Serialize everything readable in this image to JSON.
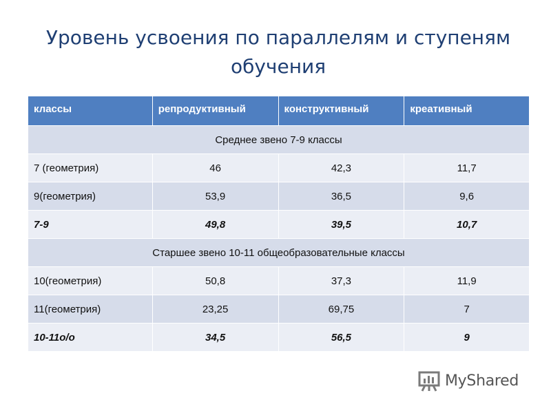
{
  "slide": {
    "title": "Уровень усвоения по параллелям и ступеням обучения"
  },
  "table": {
    "headers": [
      "классы",
      "репродуктивный",
      "конструктивный",
      "креативный"
    ],
    "sections": [
      {
        "label": "Среднее звено 7-9 классы",
        "rows": [
          {
            "cells": [
              "7 (геометрия)",
              "46",
              "42,3",
              "11,7"
            ],
            "bold": false
          },
          {
            "cells": [
              "9(геометрия)",
              "53,9",
              "36,5",
              "9,6"
            ],
            "bold": false
          },
          {
            "cells": [
              "7-9",
              "49,8",
              "39,5",
              "10,7"
            ],
            "bold": true
          }
        ]
      },
      {
        "label": "Старшее звено 10-11 общеобразовательные классы",
        "rows": [
          {
            "cells": [
              "10(геометрия)",
              "50,8",
              "37,3",
              "11,9"
            ],
            "bold": false
          },
          {
            "cells": [
              "11(геометрия)",
              "23,25",
              "69,75",
              "7"
            ],
            "bold": false
          },
          {
            "cells": [
              "10-11о/о",
              "34,5",
              "56,5",
              "9"
            ],
            "bold": true
          }
        ]
      }
    ]
  },
  "watermark": {
    "text": "MyShared",
    "icon": "presentation-board-icon"
  },
  "colors": {
    "title": "#1f3f73",
    "header_bg": "#4f7fc1",
    "row_dark": "#d6dcea",
    "row_light": "#ebeef5"
  }
}
